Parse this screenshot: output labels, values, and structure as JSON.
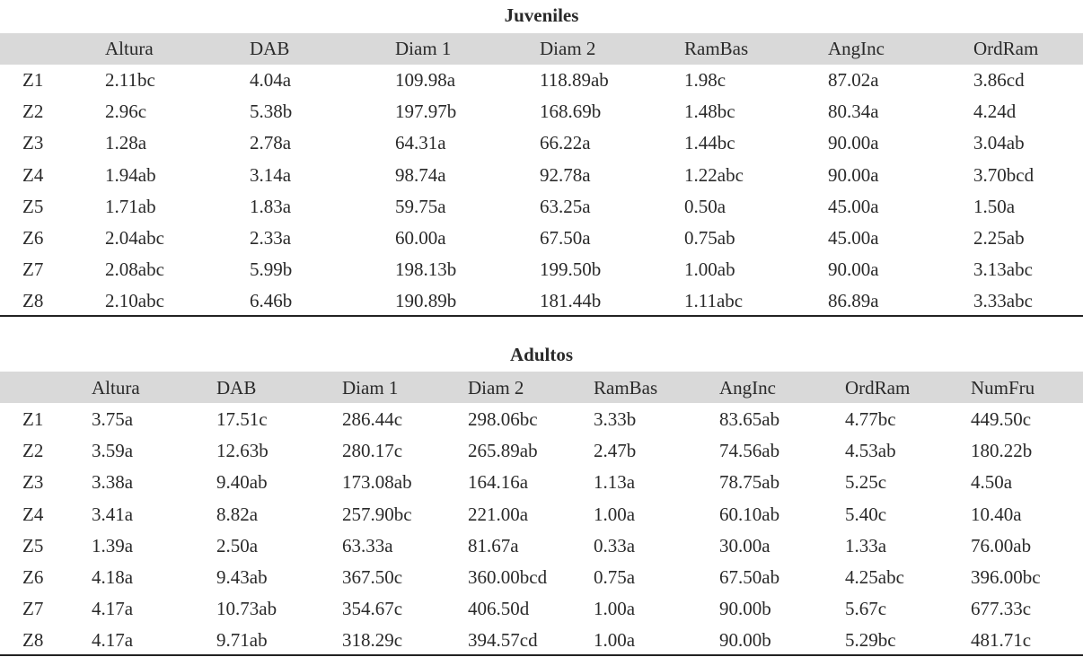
{
  "juveniles": {
    "title": "Juveniles",
    "headers": [
      "Altura",
      "DAB",
      "Diam 1",
      "Diam 2",
      "RamBas",
      "AngInc",
      "OrdRam"
    ],
    "rows": [
      [
        "Z1",
        "2.11bc",
        "4.04a",
        "109.98a",
        "118.89ab",
        "1.98c",
        "87.02a",
        "3.86cd"
      ],
      [
        "Z2",
        "2.96c",
        "5.38b",
        "197.97b",
        "168.69b",
        "1.48bc",
        "80.34a",
        "4.24d"
      ],
      [
        "Z3",
        "1.28a",
        "2.78a",
        "64.31a",
        "66.22a",
        "1.44bc",
        "90.00a",
        "3.04ab"
      ],
      [
        "Z4",
        "1.94ab",
        "3.14a",
        "98.74a",
        "92.78a",
        "1.22abc",
        "90.00a",
        "3.70bcd"
      ],
      [
        "Z5",
        "1.71ab",
        "1.83a",
        "59.75a",
        "63.25a",
        "0.50a",
        "45.00a",
        "1.50a"
      ],
      [
        "Z6",
        "2.04abc",
        "2.33a",
        "60.00a",
        "67.50a",
        "0.75ab",
        "45.00a",
        "2.25ab"
      ],
      [
        "Z7",
        "2.08abc",
        "5.99b",
        "198.13b",
        "199.50b",
        "1.00ab",
        "90.00a",
        "3.13abc"
      ],
      [
        "Z8",
        "2.10abc",
        "6.46b",
        "190.89b",
        "181.44b",
        "1.11abc",
        "86.89a",
        "3.33abc"
      ]
    ]
  },
  "adultos": {
    "title": "Adultos",
    "headers": [
      "Altura",
      "DAB",
      "Diam 1",
      "Diam 2",
      "RamBas",
      "AngInc",
      "OrdRam",
      "NumFru"
    ],
    "rows": [
      [
        "Z1",
        "3.75a",
        "17.51c",
        "286.44c",
        "298.06bc",
        "3.33b",
        "83.65ab",
        "4.77bc",
        "449.50c"
      ],
      [
        "Z2",
        "3.59a",
        "12.63b",
        "280.17c",
        "265.89ab",
        "2.47b",
        "74.56ab",
        "4.53ab",
        "180.22b"
      ],
      [
        "Z3",
        "3.38a",
        "9.40ab",
        "173.08ab",
        "164.16a",
        "1.13a",
        "78.75ab",
        "5.25c",
        "4.50a"
      ],
      [
        "Z4",
        "3.41a",
        "8.82a",
        "257.90bc",
        "221.00a",
        "1.00a",
        "60.10ab",
        "5.40c",
        "10.40a"
      ],
      [
        "Z5",
        "1.39a",
        "2.50a",
        "63.33a",
        "81.67a",
        "0.33a",
        "30.00a",
        "1.33a",
        "76.00ab"
      ],
      [
        "Z6",
        "4.18a",
        "9.43ab",
        "367.50c",
        "360.00bcd",
        "0.75a",
        "67.50ab",
        "4.25abc",
        "396.00bc"
      ],
      [
        "Z7",
        "4.17a",
        "10.73ab",
        "354.67c",
        "406.50d",
        "1.00a",
        "90.00b",
        "5.67c",
        "677.33c"
      ],
      [
        "Z8",
        "4.17a",
        "9.71ab",
        "318.29c",
        "394.57cd",
        "1.00a",
        "90.00b",
        "5.29bc",
        "481.71c"
      ]
    ]
  }
}
